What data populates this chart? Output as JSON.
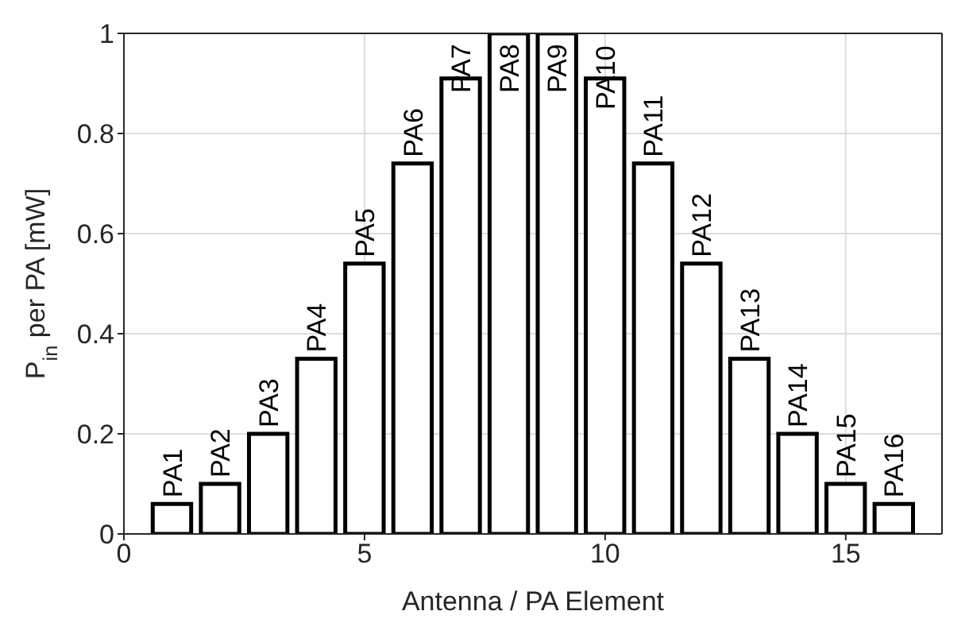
{
  "chart_data": {
    "type": "bar",
    "xlabel": "Antenna / PA Element",
    "ylabel": "P$_{in}$ per PA [mW]",
    "x": [
      1,
      2,
      3,
      4,
      5,
      6,
      7,
      8,
      9,
      10,
      11,
      12,
      13,
      14,
      15,
      16
    ],
    "values": [
      0.06,
      0.1,
      0.2,
      0.35,
      0.54,
      0.74,
      0.91,
      1,
      1,
      0.91,
      0.74,
      0.54,
      0.35,
      0.2,
      0.1,
      0.06
    ],
    "color": "#ffffff",
    "xlim": [
      0,
      17
    ],
    "ylim": [
      0,
      1
    ],
    "xticks": [
      0,
      5,
      10,
      15
    ],
    "yticks": [
      0,
      0.2,
      0.4,
      0.6,
      0.8,
      1
    ],
    "grid": true,
    "annotations": [
      "PA1",
      "PA2",
      "PA3",
      "PA4",
      "PA5",
      "PA6",
      "PA7",
      "PA8",
      "PA9",
      "PA10",
      "PA11",
      "PA12",
      "PA13",
      "PA14",
      "PA15",
      "PA16"
    ]
  }
}
